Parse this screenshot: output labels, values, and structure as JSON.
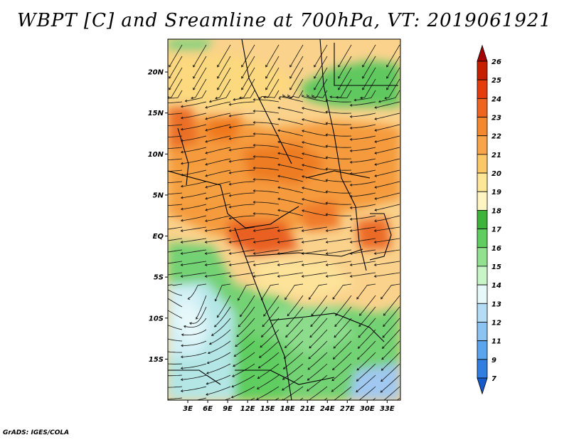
{
  "title": "WBPT [C] and Sreamline at 700hPa, VT: 2019061921",
  "credit": "GrADS: IGES/COLA",
  "lat_labels": [
    "20N",
    "15N",
    "10N",
    "5N",
    "EQ",
    "5S",
    "10S",
    "15S"
  ],
  "lon_labels": [
    "3E",
    "6E",
    "9E",
    "12E",
    "15E",
    "18E",
    "21E",
    "24E",
    "27E",
    "30E",
    "33E"
  ],
  "colorbar": {
    "labels": [
      "26",
      "25",
      "24",
      "23",
      "22",
      "21",
      "20",
      "19",
      "18",
      "17",
      "16",
      "15",
      "14",
      "13",
      "12",
      "11",
      "9",
      "7"
    ],
    "colors": [
      "#a50000",
      "#c81e00",
      "#e63c0a",
      "#f0641e",
      "#f5872d",
      "#f7a546",
      "#fac864",
      "#fde698",
      "#fff5c3",
      "#3cb43c",
      "#5fcd5f",
      "#91e191",
      "#c8f5c8",
      "#e6f8f8",
      "#b4dcf5",
      "#8cc3f0",
      "#5aa5eb",
      "#327de1",
      "#145ac8"
    ]
  },
  "chart_data": {
    "type": "heatmap",
    "variable": "WBPT",
    "units": "C",
    "level": "700hPa",
    "valid_time": "2019061921",
    "lon_range": [
      0,
      35
    ],
    "lat_range": [
      -20,
      24
    ],
    "lon_ticks": [
      3,
      6,
      9,
      12,
      15,
      18,
      21,
      24,
      27,
      30,
      33
    ],
    "lat_ticks": [
      20,
      15,
      10,
      5,
      0,
      -5,
      -10,
      -15
    ],
    "color_levels": [
      7,
      9,
      11,
      12,
      13,
      14,
      15,
      16,
      17,
      18,
      19,
      20,
      21,
      22,
      23,
      24,
      25,
      26
    ],
    "overlay": "streamlines"
  }
}
